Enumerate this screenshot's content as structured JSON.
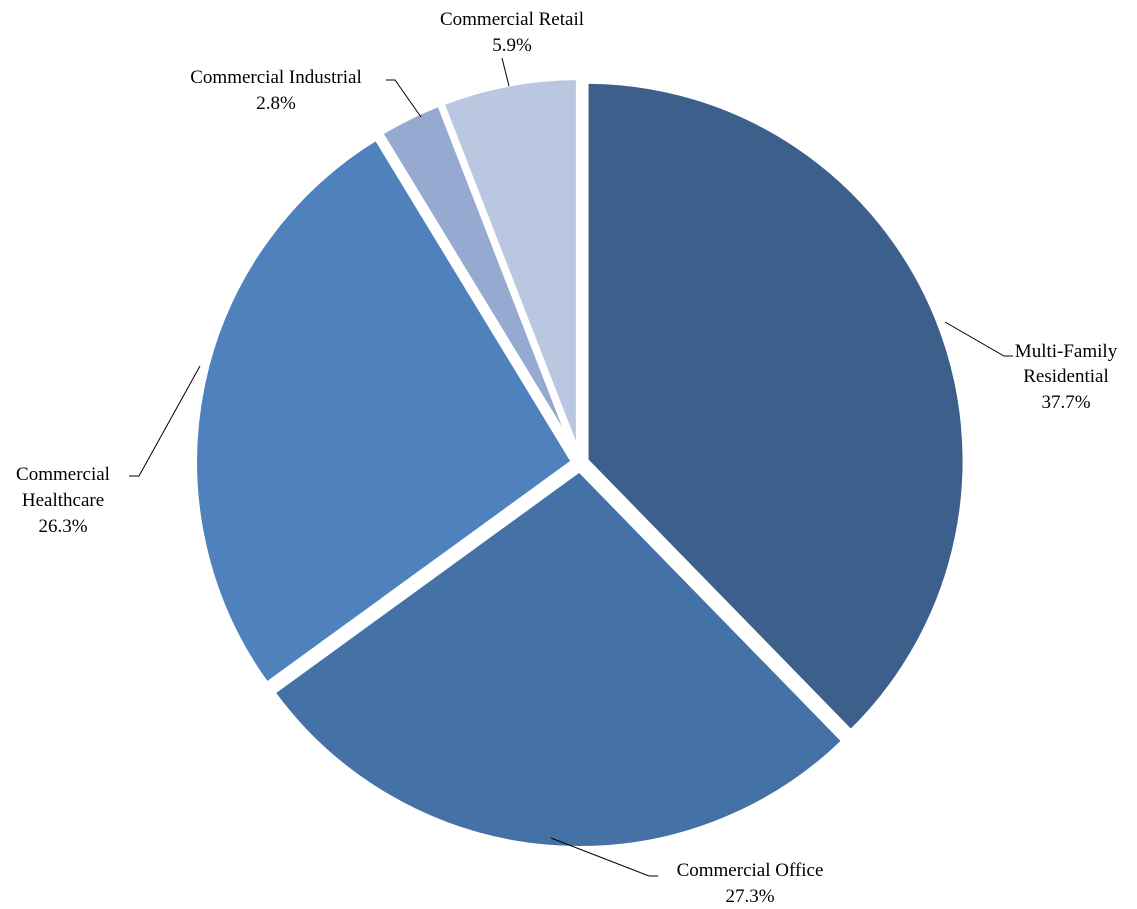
{
  "chart_data": {
    "type": "pie",
    "title": "",
    "start_angle_deg": 0,
    "direction": "clockwise",
    "slices": [
      {
        "name": "Multi-Family Residential",
        "label_lines": [
          "Multi-Family",
          "Residential"
        ],
        "value": 37.7,
        "value_label": "37.7%",
        "color": "#3C5F8C"
      },
      {
        "name": "Commercial Office",
        "label_lines": [
          "Commercial Office"
        ],
        "value": 27.3,
        "value_label": "27.3%",
        "color": "#4472A6"
      },
      {
        "name": "Commercial Healthcare",
        "label_lines": [
          "Commercial",
          "Healthcare"
        ],
        "value": 26.3,
        "value_label": "26.3%",
        "color": "#4F81BD"
      },
      {
        "name": "Commercial Industrial",
        "label_lines": [
          "Commercial Industrial"
        ],
        "value": 2.8,
        "value_label": "2.8%",
        "color": "#95A9D1"
      },
      {
        "name": "Commercial Retail",
        "label_lines": [
          "Commercial Retail"
        ],
        "value": 5.9,
        "value_label": "5.9%",
        "color": "#B9C7E0"
      }
    ]
  }
}
